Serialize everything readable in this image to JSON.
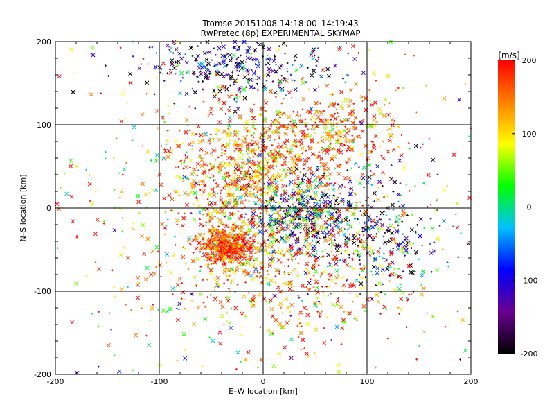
{
  "chart_data": {
    "type": "scatter",
    "title": "Tromsø 20151008 14:18:00–14:19:43",
    "subtitle": "RwPretec (8p) EXPERIMENTAL SKYMAP",
    "xlabel": "E–W location [km]",
    "ylabel": "N–S location [km]",
    "xlim": [
      -200,
      200
    ],
    "ylim": [
      -200,
      200
    ],
    "x_ticks": [
      "-200",
      "-100",
      "0",
      "100",
      "200"
    ],
    "y_ticks": [
      "-200",
      "-100",
      "0",
      "100",
      "200"
    ],
    "grid": true,
    "grid_lines_at": [
      -100,
      0,
      100
    ],
    "colorbar": {
      "label": "[m/s]",
      "range": [
        -200,
        200
      ],
      "ticks": [
        "200",
        "100",
        "0",
        "-100",
        "-200"
      ],
      "colormap": [
        "#000000",
        "#6a0090",
        "#0000ff",
        "#00c0ff",
        "#00ff00",
        "#ffff00",
        "#ff8000",
        "#ff0000"
      ]
    },
    "markers": [
      "x",
      "+"
    ],
    "series": [
      {
        "description_only_clusters": true,
        "clusters": [
          {
            "cx": -35,
            "cy": -45,
            "sx": 14,
            "sy": 12,
            "n": 520,
            "vmean": 170,
            "vsd": 60
          },
          {
            "cx": -15,
            "cy": 45,
            "sx": 38,
            "sy": 35,
            "n": 700,
            "vmean": 150,
            "vsd": 70
          },
          {
            "cx": 40,
            "cy": -10,
            "sx": 25,
            "sy": 22,
            "n": 500,
            "vmean": -40,
            "vsd": 120
          },
          {
            "cx": 60,
            "cy": 90,
            "sx": 35,
            "sy": 25,
            "n": 350,
            "vmean": 160,
            "vsd": 60
          },
          {
            "cx": -30,
            "cy": 170,
            "sx": 45,
            "sy": 18,
            "n": 300,
            "vmean": -150,
            "vsd": 90
          },
          {
            "cx": 100,
            "cy": -30,
            "sx": 35,
            "sy": 35,
            "n": 300,
            "vmean": -120,
            "vsd": 120
          },
          {
            "cx": 20,
            "cy": -80,
            "sx": 60,
            "sy": 40,
            "n": 500,
            "vmean": 150,
            "vsd": 80
          },
          {
            "cx": 0,
            "cy": 0,
            "sx": 120,
            "sy": 110,
            "n": 700,
            "vmean": 100,
            "vsd": 120
          }
        ]
      }
    ]
  }
}
